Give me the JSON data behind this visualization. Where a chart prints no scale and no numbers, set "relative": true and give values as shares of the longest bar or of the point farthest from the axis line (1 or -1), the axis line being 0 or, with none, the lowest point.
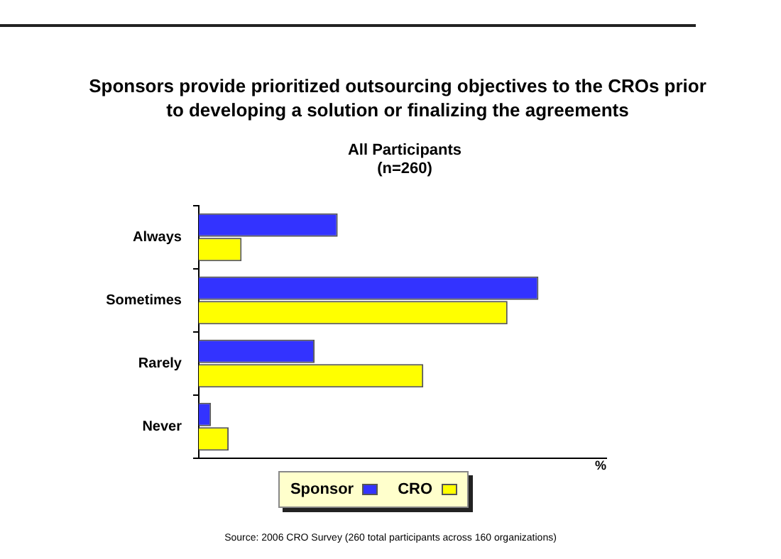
{
  "chart_data": {
    "type": "bar",
    "orientation": "horizontal",
    "relative": true,
    "title": "Sponsors provide prioritized outsourcing objectives to the CROs prior to developing a solution or finalizing the agreements",
    "subtitle": "All Participants\n(n=260)",
    "xlabel": "%",
    "categories": [
      "Always",
      "Sometimes",
      "Rarely",
      "Never"
    ],
    "series": [
      {
        "name": "Sponsor",
        "color": "#3333ff",
        "values": [
          0.409,
          1,
          0.341,
          0.036
        ]
      },
      {
        "name": "CRO",
        "color": "#ffff00",
        "values": [
          0.126,
          0.909,
          0.661,
          0.088
        ]
      }
    ],
    "legend": "bottom",
    "grid": false,
    "annotations": [
      "Source: 2006 CRO Survey (260 total participants across 160 organizations)"
    ]
  }
}
